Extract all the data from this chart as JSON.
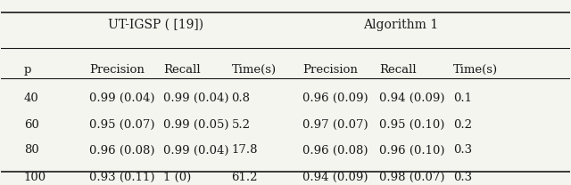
{
  "title_left": "UT-IGSP ( [19])",
  "title_right": "Algorithm 1",
  "col_headers": [
    "p",
    "Precision",
    "Recall",
    "Time(s)",
    "Precision",
    "Recall",
    "Time(s)"
  ],
  "rows": [
    [
      "40",
      "0.99 (0.04)",
      "0.99 (0.04)",
      "0.8",
      "0.96 (0.09)",
      "0.94 (0.09)",
      "0.1"
    ],
    [
      "60",
      "0.95 (0.07)",
      "0.99 (0.05)",
      "5.2",
      "0.97 (0.07)",
      "0.95 (0.10)",
      "0.2"
    ],
    [
      "80",
      "0.96 (0.08)",
      "0.99 (0.04)",
      "17.8",
      "0.96 (0.08)",
      "0.96 (0.10)",
      "0.3"
    ],
    [
      "100",
      "0.93 (0.11)",
      "1 (0)",
      "61.2",
      "0.94 (0.09)",
      "0.98 (0.07)",
      "0.3"
    ]
  ],
  "bg_color": "#f5f5f0",
  "text_color": "#1a1a1a",
  "font_size": 9.5,
  "header_font_size": 9.5,
  "title_font_size": 10.0
}
